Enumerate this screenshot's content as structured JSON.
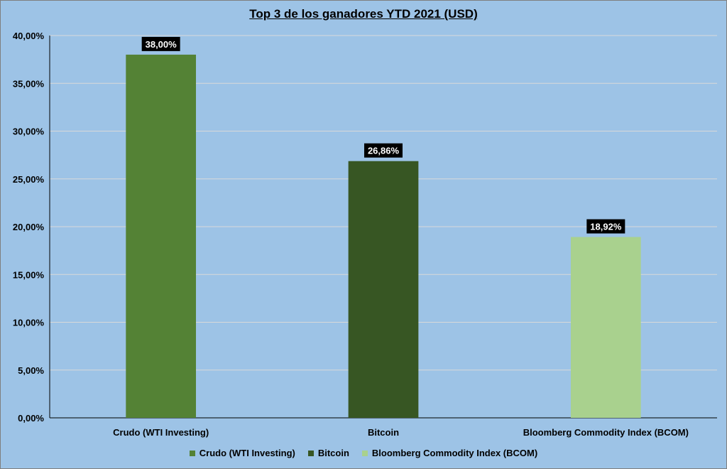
{
  "chart_data": {
    "type": "bar",
    "title": "Top 3 de los ganadores  YTD 2021 (USD)",
    "categories": [
      "Crudo (WTI Investing)",
      "Bitcoin",
      "Bloomberg Commodity Index (BCOM)"
    ],
    "values": [
      38.0,
      26.86,
      18.92
    ],
    "data_labels": [
      "38,00%",
      "26,86%",
      "18,92%"
    ],
    "colors": [
      "#548235",
      "#375623",
      "#a9d18e"
    ],
    "ylim": [
      0,
      40
    ],
    "yticks": [
      0,
      5,
      10,
      15,
      20,
      25,
      30,
      35,
      40
    ],
    "ytick_labels": [
      "0,00%",
      "5,00%",
      "10,00%",
      "15,00%",
      "20,00%",
      "25,00%",
      "30,00%",
      "35,00%",
      "40,00%"
    ],
    "grid": true,
    "legend_position": "bottom",
    "legend": [
      "Crudo (WTI Investing)",
      "Bitcoin",
      "Bloomberg Commodity Index (BCOM)"
    ]
  }
}
